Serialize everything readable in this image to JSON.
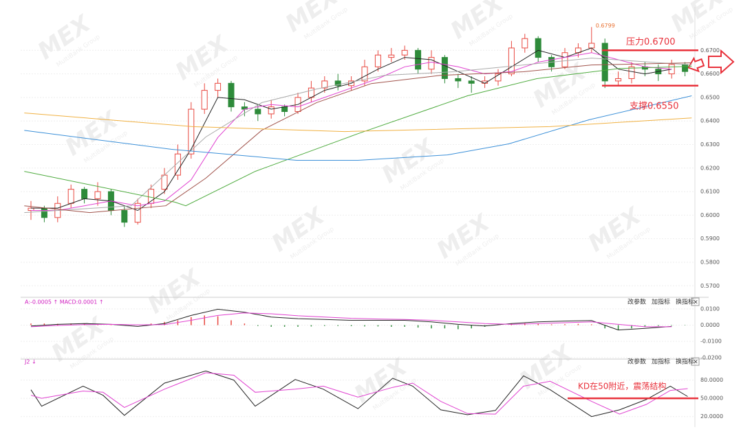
{
  "chart_data": [
    {
      "type": "candlestick",
      "candles": [
        [
          0.602,
          0.606,
          0.598,
          0.603
        ],
        [
          0.603,
          0.604,
          0.597,
          0.599
        ],
        [
          0.599,
          0.608,
          0.597,
          0.605
        ],
        [
          0.605,
          0.613,
          0.603,
          0.611
        ],
        [
          0.611,
          0.612,
          0.605,
          0.607
        ],
        [
          0.607,
          0.614,
          0.604,
          0.61
        ],
        [
          0.61,
          0.611,
          0.6,
          0.602
        ],
        [
          0.602,
          0.604,
          0.595,
          0.597
        ],
        [
          0.597,
          0.607,
          0.596,
          0.605
        ],
        [
          0.605,
          0.613,
          0.603,
          0.611
        ],
        [
          0.611,
          0.62,
          0.609,
          0.617
        ],
        [
          0.617,
          0.63,
          0.615,
          0.626
        ],
        [
          0.626,
          0.648,
          0.624,
          0.645
        ],
        [
          0.645,
          0.656,
          0.643,
          0.653
        ],
        [
          0.653,
          0.658,
          0.65,
          0.656
        ],
        [
          0.656,
          0.657,
          0.644,
          0.646
        ],
        [
          0.646,
          0.648,
          0.642,
          0.645
        ],
        [
          0.645,
          0.647,
          0.64,
          0.643
        ],
        [
          0.643,
          0.649,
          0.641,
          0.646
        ],
        [
          0.646,
          0.647,
          0.642,
          0.644
        ],
        [
          0.644,
          0.652,
          0.643,
          0.65
        ],
        [
          0.65,
          0.657,
          0.648,
          0.654
        ],
        [
          0.654,
          0.659,
          0.652,
          0.657
        ],
        [
          0.657,
          0.66,
          0.653,
          0.655
        ],
        [
          0.655,
          0.659,
          0.653,
          0.657
        ],
        [
          0.657,
          0.666,
          0.655,
          0.663
        ],
        [
          0.663,
          0.67,
          0.661,
          0.668
        ],
        [
          0.667,
          0.671,
          0.665,
          0.668
        ],
        [
          0.668,
          0.672,
          0.666,
          0.67
        ],
        [
          0.67,
          0.671,
          0.66,
          0.662
        ],
        [
          0.662,
          0.67,
          0.66,
          0.667
        ],
        [
          0.667,
          0.668,
          0.656,
          0.658
        ],
        [
          0.658,
          0.66,
          0.654,
          0.657
        ],
        [
          0.657,
          0.659,
          0.652,
          0.656
        ],
        [
          0.656,
          0.659,
          0.654,
          0.657
        ],
        [
          0.657,
          0.662,
          0.655,
          0.66
        ],
        [
          0.66,
          0.674,
          0.659,
          0.671
        ],
        [
          0.671,
          0.677,
          0.669,
          0.675
        ],
        [
          0.675,
          0.676,
          0.665,
          0.667
        ],
        [
          0.667,
          0.668,
          0.661,
          0.663
        ],
        [
          0.663,
          0.671,
          0.662,
          0.669
        ],
        [
          0.669,
          0.673,
          0.667,
          0.671
        ],
        [
          0.671,
          0.6799,
          0.669,
          0.673
        ],
        [
          0.673,
          0.675,
          0.654,
          0.657
        ],
        [
          0.657,
          0.661,
          0.655,
          0.658
        ],
        [
          0.658,
          0.665,
          0.656,
          0.663
        ],
        [
          0.663,
          0.665,
          0.659,
          0.662
        ],
        [
          0.662,
          0.664,
          0.657,
          0.66
        ],
        [
          0.66,
          0.666,
          0.658,
          0.664
        ],
        [
          0.664,
          0.665,
          0.659,
          0.661
        ]
      ],
      "high_candle": 42,
      "up_color": "#e8473f",
      "down_color": "#2e8b3a",
      "series": [
        {
          "color": "#222222",
          "x": [
            0,
            2,
            4,
            6,
            8,
            10,
            12,
            14,
            16,
            18,
            20,
            22,
            24,
            26,
            28,
            30,
            32,
            34,
            36,
            38,
            40,
            42,
            44,
            46,
            48
          ],
          "values": [
            0.603,
            0.603,
            0.607,
            0.606,
            0.602,
            0.61,
            0.628,
            0.65,
            0.649,
            0.645,
            0.647,
            0.653,
            0.656,
            0.662,
            0.667,
            0.666,
            0.661,
            0.656,
            0.663,
            0.67,
            0.667,
            0.671,
            0.662,
            0.66,
            0.662
          ]
        },
        {
          "color": "#e040d0",
          "x": [
            0,
            2,
            4,
            6,
            8,
            10,
            12,
            14,
            16,
            18,
            20,
            22,
            24,
            26,
            28,
            30,
            32,
            34,
            36,
            38,
            40,
            42,
            44,
            46,
            48
          ],
          "values": [
            0.602,
            0.602,
            0.604,
            0.606,
            0.604,
            0.606,
            0.615,
            0.633,
            0.645,
            0.647,
            0.646,
            0.65,
            0.654,
            0.658,
            0.663,
            0.665,
            0.663,
            0.66,
            0.661,
            0.665,
            0.667,
            0.669,
            0.666,
            0.663,
            0.662
          ]
        },
        {
          "color": "#aaaaaa",
          "x": [
            -0.5,
            7.5,
            13.1,
            17.3,
            21.4,
            26.5,
            31.7,
            36.9,
            42,
            49.5
          ],
          "values": [
            0.6011,
            0.604,
            0.6332,
            0.6478,
            0.6536,
            0.6594,
            0.6609,
            0.6638,
            0.6667,
            0.6638
          ]
        },
        {
          "color": "#a0524a",
          "x": [
            -0.5,
            4.4,
            10.1,
            13.1,
            17.3,
            21.4,
            25.5,
            30.7,
            36.9,
            42,
            49.5
          ],
          "values": [
            0.604,
            0.6011,
            0.604,
            0.6157,
            0.6361,
            0.6478,
            0.6559,
            0.6594,
            0.6609,
            0.6638,
            0.6647
          ]
        },
        {
          "color": "#4caa3c",
          "x": [
            -0.5,
            10.8,
            11.6,
            16.8,
            24.5,
            32.7,
            37.9,
            44.1,
            49.5
          ],
          "values": [
            0.6186,
            0.6055,
            0.604,
            0.6186,
            0.6346,
            0.6507,
            0.658,
            0.6623,
            0.6632
          ]
        },
        {
          "color": "#3a8fd8",
          "x": [
            -0.5,
            10.5,
            19.9,
            24.5,
            31.2,
            35.8,
            41.8,
            49.5
          ],
          "values": [
            0.636,
            0.628,
            0.6233,
            0.6233,
            0.6256,
            0.6303,
            0.6405,
            0.6507
          ]
        },
        {
          "color": "#f0b040",
          "x": [
            -0.5,
            12.1,
            23.5,
            38.9,
            49.5
          ],
          "values": [
            0.6434,
            0.6376,
            0.6355,
            0.6376,
            0.6413
          ]
        }
      ],
      "ylim": [
        0.566,
        0.687
      ],
      "yticks": [
        {
          "value": 0.67,
          "label": "0.6700"
        },
        {
          "value": 0.66,
          "label": "0.6600"
        },
        {
          "value": 0.65,
          "label": "0.6500"
        },
        {
          "value": 0.64,
          "label": "0.6400"
        },
        {
          "value": 0.63,
          "label": "0.6300"
        },
        {
          "value": 0.62,
          "label": "0.6200"
        },
        {
          "value": 0.61,
          "label": "0.6100"
        },
        {
          "value": 0.6,
          "label": "0.6000"
        },
        {
          "value": 0.59,
          "label": "0.5900"
        },
        {
          "value": 0.58,
          "label": "0.5800"
        },
        {
          "value": 0.57,
          "label": "0.5700"
        }
      ],
      "annotations": [
        {
          "text": "压力0.6700",
          "value": 0.67,
          "color": "#e8303a"
        },
        {
          "text": "支撑0.6550",
          "value": 0.655,
          "color": "#e8303a"
        }
      ]
    },
    {
      "type": "macd",
      "header": "A:-0.0005 ↑ MACD:0.0001 ↑",
      "values": [
        0.001,
        0.001,
        0.0008,
        0.001,
        0.001,
        0.0005,
        0.0003,
        -0.0002,
        0.0003,
        0.001,
        0.002,
        0.003,
        0.005,
        0.006,
        0.0055,
        0.003,
        0.001,
        -0.0005,
        -0.001,
        -0.001,
        -0.001,
        -0.0008,
        -0.0005,
        -0.0005,
        -0.0006,
        -0.0008,
        -0.0008,
        -0.001,
        -0.001,
        -0.0015,
        -0.002,
        -0.002,
        -0.0025,
        -0.002,
        -0.001,
        0.0005,
        0.001,
        0.0012,
        0.0008,
        0.0005,
        0.0006,
        0.0008,
        0.0005,
        -0.002,
        -0.003,
        -0.002,
        -0.001,
        -0.0005,
        -0.0003,
        -0.0002
      ],
      "up_color": "#e8473f",
      "down_color": "#2e8b3a",
      "series": [
        {
          "color": "#222222",
          "x": [
            0,
            2,
            4,
            6,
            8,
            10,
            12,
            14,
            16,
            18,
            20,
            22,
            24,
            26,
            28,
            30,
            32,
            34,
            36,
            38,
            40,
            42,
            44,
            46,
            48
          ],
          "values": [
            -0.0005,
            0.0005,
            0.001,
            0.0005,
            -0.0008,
            0.001,
            0.006,
            0.0098,
            0.008,
            0.005,
            0.004,
            0.0035,
            0.003,
            0.003,
            0.003,
            0.002,
            0.0005,
            -0.0005,
            0.001,
            0.002,
            0.0025,
            0.0028,
            -0.003,
            -0.002,
            -0.0008
          ]
        },
        {
          "color": "#e040d0",
          "x": [
            0,
            2,
            4,
            6,
            8,
            10,
            12,
            14,
            16,
            18,
            20,
            22,
            24,
            26,
            28,
            30,
            32,
            34,
            36,
            38,
            40,
            42,
            44,
            46,
            48
          ],
          "values": [
            -0.001,
            -0.0002,
            0.0003,
            0.0005,
            0.0002,
            0.0003,
            0.003,
            0.006,
            0.0075,
            0.007,
            0.0058,
            0.005,
            0.0042,
            0.0038,
            0.0035,
            0.003,
            0.002,
            0.001,
            0.0005,
            0.001,
            0.0015,
            0.002,
            0.0005,
            -0.001,
            -0.001
          ]
        }
      ],
      "ylim": [
        -0.0205,
        0.0142
      ],
      "yticks": [
        {
          "value": 0.01,
          "label": "0.0100"
        },
        {
          "value": 0,
          "label": "0.0000"
        },
        {
          "value": -0.01,
          "label": "-0.0100"
        },
        {
          "value": -0.02,
          "label": "-0.0200"
        }
      ]
    },
    {
      "type": "kd",
      "header": "J2 ↓",
      "series": [
        {
          "color": "#222222",
          "x": [
            0,
            0.8,
            3.9,
            5.4,
            7,
            10,
            13.1,
            15.2,
            16.8,
            19.8,
            21.9,
            24.5,
            27.1,
            28.6,
            30.7,
            32.7,
            34.8,
            36.9,
            38.9,
            42,
            44.1,
            46.1,
            47.9,
            49.2
          ],
          "values": [
            64,
            37,
            70,
            55,
            22,
            75,
            95,
            80,
            37,
            81,
            65,
            33,
            83,
            70,
            31,
            23,
            30,
            87,
            64,
            20,
            31,
            48,
            70,
            53
          ]
        },
        {
          "color": "#e040d0",
          "x": [
            0,
            0.8,
            3.9,
            5.4,
            7,
            10,
            13.1,
            15.2,
            16.8,
            19.8,
            21.9,
            24.5,
            27.1,
            28.6,
            30.7,
            32.7,
            34.8,
            36.9,
            38.9,
            42,
            44.1,
            46.1,
            47.9,
            49.2
          ],
          "values": [
            55,
            50,
            62,
            60,
            35,
            65,
            92,
            88,
            60,
            65,
            70,
            52,
            68,
            75,
            45,
            25,
            24,
            70,
            78,
            45,
            24,
            40,
            63,
            66
          ]
        }
      ],
      "ylim": [
        14,
        110
      ],
      "yticks": [
        {
          "value": 80,
          "label": "80.0000"
        },
        {
          "value": 50,
          "label": "50.0000"
        },
        {
          "value": 20,
          "label": "20.0000"
        }
      ],
      "annotations": [
        {
          "text": "KD在50附近，震荡结构",
          "value": 50,
          "color": "#e8303a"
        }
      ]
    }
  ],
  "toolbar": [
    "改参数",
    "加指标",
    "换指标",
    "×"
  ],
  "watermark": {
    "logo": "MEX",
    "sub": "MultiBank Group"
  }
}
